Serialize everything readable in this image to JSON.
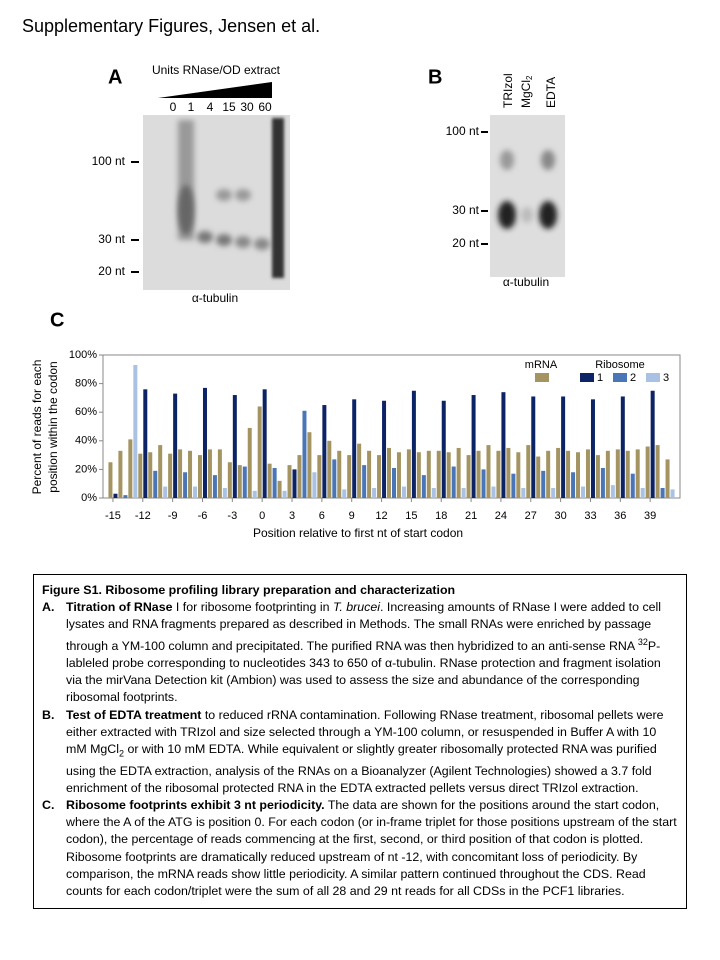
{
  "header": {
    "title": "Supplementary Figures, Jensen et al."
  },
  "panel_a": {
    "label": "A",
    "title": "Units RNase/OD extract",
    "lanes": [
      "0",
      "1",
      "4",
      "15",
      "30",
      "60"
    ],
    "markers": [
      "100 nt",
      "30 nt",
      "20 nt"
    ],
    "probe": "α-tubulin"
  },
  "panel_b": {
    "label": "B",
    "lanes": [
      {
        "text": "TRIzol"
      },
      {
        "text": "MgCl",
        "sub": "2"
      },
      {
        "text": "EDTA"
      }
    ],
    "markers": [
      "100 nt",
      "30 nt",
      "20 nt"
    ],
    "probe": "α-tubulin"
  },
  "chart_data": {
    "type": "bar",
    "panel_label": "C",
    "y_label": [
      "Percent of reads for each",
      "position within the codon"
    ],
    "x_label": "Position relative to first nt of start codon",
    "x": [
      -15,
      -14,
      -13,
      -12,
      -11,
      -10,
      -9,
      -8,
      -7,
      -6,
      -5,
      -4,
      -3,
      -2,
      -1,
      0,
      1,
      2,
      3,
      4,
      5,
      6,
      7,
      8,
      9,
      10,
      11,
      12,
      13,
      14,
      15,
      16,
      17,
      18,
      19,
      20,
      21,
      22,
      23,
      24,
      25,
      26,
      27,
      28,
      29,
      30,
      31,
      32,
      33,
      34,
      35,
      36,
      37,
      38,
      39,
      40,
      41
    ],
    "xlim": [
      -16,
      42
    ],
    "xticks": [
      -15,
      -12,
      -9,
      -6,
      -3,
      0,
      3,
      6,
      9,
      12,
      15,
      18,
      21,
      24,
      27,
      30,
      33,
      36,
      39
    ],
    "ylim": [
      0,
      100
    ],
    "yticks": [
      {
        "value": 0,
        "label": "0%"
      },
      {
        "value": 20,
        "label": "20%"
      },
      {
        "value": 40,
        "label": "40%"
      },
      {
        "value": 60,
        "label": "60%"
      },
      {
        "value": 80,
        "label": "80%"
      },
      {
        "value": 100,
        "label": "100%"
      }
    ],
    "legend_group_title": "Ribosome",
    "series": [
      {
        "name": "mRNA",
        "color": "#a39462",
        "values": [
          25,
          33,
          41,
          31,
          32,
          37,
          31,
          34,
          33,
          30,
          34,
          34,
          25,
          23,
          49,
          64,
          24,
          12,
          23,
          30,
          46,
          30,
          40,
          33,
          30,
          38,
          33,
          30,
          35,
          32,
          34,
          32,
          33,
          33,
          32,
          35,
          30,
          33,
          37,
          33,
          35,
          32,
          37,
          29,
          33,
          35,
          33,
          32,
          34,
          30,
          33,
          34,
          33,
          34,
          36,
          37,
          27
        ]
      },
      {
        "name": "1",
        "color": "#0c2366",
        "values": [
          3,
          null,
          null,
          76,
          null,
          null,
          73,
          null,
          null,
          77,
          null,
          null,
          72,
          null,
          null,
          76,
          null,
          null,
          20,
          null,
          null,
          65,
          null,
          null,
          69,
          null,
          null,
          68,
          null,
          null,
          75,
          null,
          null,
          68,
          null,
          null,
          72,
          null,
          null,
          74,
          null,
          null,
          71,
          null,
          null,
          71,
          null,
          null,
          69,
          null,
          null,
          71,
          null,
          null,
          75,
          null,
          null
        ]
      },
      {
        "name": "2",
        "color": "#4a76b8",
        "values": [
          null,
          2,
          null,
          null,
          19,
          null,
          null,
          18,
          null,
          null,
          16,
          null,
          null,
          22,
          null,
          null,
          21,
          null,
          null,
          61,
          null,
          null,
          27,
          null,
          null,
          23,
          null,
          null,
          21,
          null,
          null,
          16,
          null,
          null,
          22,
          null,
          null,
          20,
          null,
          null,
          17,
          null,
          null,
          19,
          null,
          null,
          18,
          null,
          null,
          21,
          null,
          null,
          17,
          null,
          null,
          7,
          null
        ]
      },
      {
        "name": "3",
        "color": "#a9c1e3",
        "values": [
          null,
          null,
          93,
          null,
          null,
          8,
          null,
          null,
          8,
          null,
          null,
          7,
          null,
          null,
          5,
          null,
          null,
          5,
          null,
          null,
          18,
          null,
          null,
          6,
          null,
          null,
          7,
          null,
          null,
          8,
          null,
          null,
          7,
          null,
          null,
          7,
          null,
          null,
          8,
          null,
          null,
          7,
          null,
          null,
          7,
          null,
          null,
          8,
          null,
          null,
          9,
          null,
          null,
          7,
          null,
          null,
          6
        ]
      }
    ]
  },
  "caption": {
    "title": "Figure S1. Ribosome profiling library preparation and characterization",
    "items": [
      {
        "label": "A.",
        "heading": "Titration of RNase",
        "segments": [
          " I for ribosome footprinting in ",
          "T. brucei",
          ".  Increasing amounts of RNase I were added to cell lysates and RNA fragments prepared as described in Methods. The small RNAs were enriched by passage through a YM-100 column and precipitated.  The purified RNA was then hybridized to an anti-sense RNA ",
          "32",
          "P-lableled probe corresponding to nucleotides 343 to 650 of α-tubulin.  RNase protection and fragment isolation via the mirVana Detection kit (Ambion) was used to assess the size and abundance of the corresponding ribosomal footprints."
        ]
      },
      {
        "label": "B.",
        "heading": "Test of EDTA treatment",
        "segments": [
          " to reduced rRNA contamination.  Following RNase treatment, ribosomal pellets were either extracted with TRIzol and size selected through a YM-100 column, or resuspended in Buffer A with 10 mM MgCl",
          "2",
          " or with 10 mM EDTA.  While equivalent or slightly greater ribosomally protected RNA was purified using the EDTA extraction, analysis of the RNAs on a Bioanalyzer (Agilent Technologies) showed a 3.7 fold enrichment of the ribosomal protected RNA in the EDTA extracted pellets versus direct TRIzol extraction."
        ]
      },
      {
        "label": "C.",
        "heading": "Ribosome footprints exhibit 3 nt periodicity.",
        "segments": [
          " The data are shown for the positions around the start codon, where the A of the ATG is position 0. For each codon (or in-frame triplet for those positions upstream of the start codon), the percentage of reads commencing at the first, second, or third position of that codon is plotted.  Ribosome footprints are dramatically reduced upstream of nt -12, with concomitant loss of periodicity. By comparison, the mRNA reads show little periodicity. A similar pattern continued throughout the CDS.  Read counts for each codon/triplet were the sum of all 28 and 29 nt reads for all CDSs in the PCF1 libraries."
        ]
      }
    ]
  }
}
